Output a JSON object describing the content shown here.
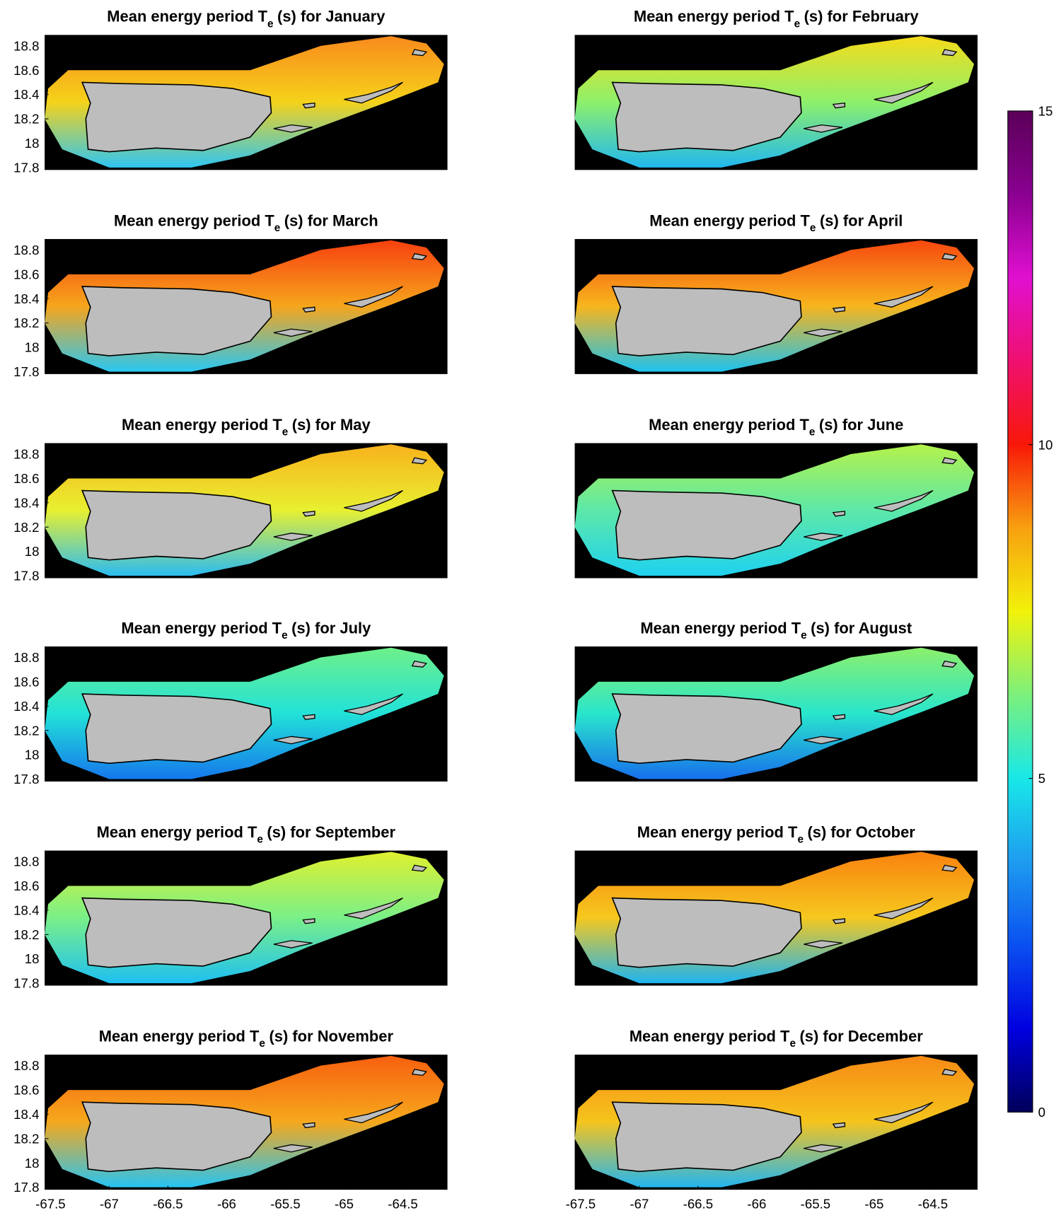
{
  "chart_data": {
    "type": "contour-map",
    "xlim": [
      -67.55,
      -64.12
    ],
    "ylim": [
      17.78,
      18.89
    ],
    "xticks": [
      -67.5,
      -67,
      -66.5,
      -66,
      -65.5,
      -65,
      -64.5
    ],
    "yticks": [
      17.8,
      18,
      18.2,
      18.4,
      18.6,
      18.8
    ],
    "panels": [
      {
        "title": {
          "main": "Mean energy period T",
          "sub": "e",
          "rest": "(s) for January"
        },
        "colors": [
          "#f98a1c",
          "#f5d21a",
          "#2fc6f2"
        ]
      },
      {
        "title": {
          "main": "Mean energy period T",
          "sub": "e",
          "rest": "(s) for February"
        },
        "colors": [
          "#f6dc1a",
          "#8ef06a",
          "#21b8f0"
        ]
      },
      {
        "title": {
          "main": "Mean energy period T",
          "sub": "e",
          "rest": "(s) for March"
        },
        "colors": [
          "#f7400f",
          "#f6a51c",
          "#29c7f2"
        ]
      },
      {
        "title": {
          "main": "Mean energy period T",
          "sub": "e",
          "rest": "(s) for April"
        },
        "colors": [
          "#f7480f",
          "#f7b51d",
          "#1ec2ee"
        ]
      },
      {
        "title": {
          "main": "Mean energy period T",
          "sub": "e",
          "rest": "(s) for May"
        },
        "colors": [
          "#f8b21c",
          "#e8f030",
          "#2bbcf2"
        ]
      },
      {
        "title": {
          "main": "Mean energy period T",
          "sub": "e",
          "rest": "(s) for June"
        },
        "colors": [
          "#b4f24a",
          "#5de8a8",
          "#1fd2f0"
        ]
      },
      {
        "title": {
          "main": "Mean energy period T",
          "sub": "e",
          "rest": "(s) for July"
        },
        "colors": [
          "#6ef08a",
          "#22e2d8",
          "#1578ec"
        ]
      },
      {
        "title": {
          "main": "Mean energy period T",
          "sub": "e",
          "rest": "(s) for August"
        },
        "colors": [
          "#8cf06c",
          "#29e6cc",
          "#1770ec"
        ]
      },
      {
        "title": {
          "main": "Mean energy period T",
          "sub": "e",
          "rest": "(s) for September"
        },
        "colors": [
          "#e0f02e",
          "#7af088",
          "#1ec0f2"
        ]
      },
      {
        "title": {
          "main": "Mean energy period T",
          "sub": "e",
          "rest": "(s) for October"
        },
        "colors": [
          "#f8820f",
          "#f6c81e",
          "#1eb4f0"
        ]
      },
      {
        "title": {
          "main": "Mean energy period T",
          "sub": "e",
          "rest": "(s) for November"
        },
        "colors": [
          "#f7600f",
          "#f6a81c",
          "#27c4f2"
        ]
      },
      {
        "title": {
          "main": "Mean energy period T",
          "sub": "e",
          "rest": "(s) for December"
        },
        "colors": [
          "#f78a16",
          "#f5c41c",
          "#23b6f0"
        ]
      }
    ],
    "colorbar": {
      "lim": [
        0,
        15
      ],
      "ticks": [
        0,
        5,
        10,
        15
      ],
      "colormap": [
        "#00005a",
        "#0000e0",
        "#0a50f0",
        "#1e9cf0",
        "#18e8e8",
        "#7cf07c",
        "#f2f20a",
        "#f8a010",
        "#f81808",
        "#f01070",
        "#e010d0",
        "#8a0090",
        "#5a0058"
      ]
    }
  }
}
